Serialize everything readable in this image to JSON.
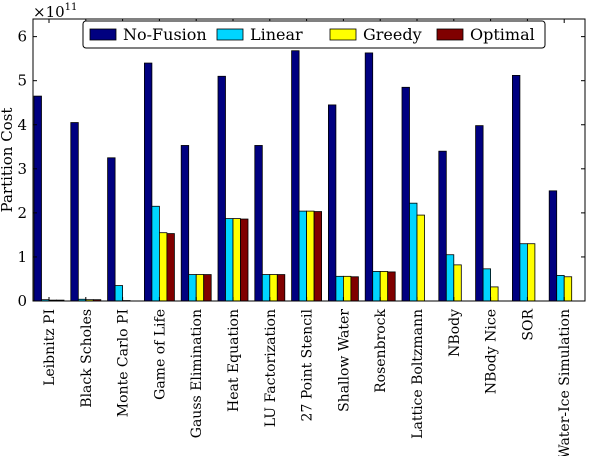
{
  "chart_data": {
    "type": "bar",
    "title": "",
    "xlabel": "",
    "ylabel": "Partition Cost",
    "y_exponent_label": "×10",
    "y_exponent_power": "11",
    "y_scale": 100000000000.0,
    "ylim": [
      0,
      6.4
    ],
    "y_ticks": [
      0,
      1,
      2,
      3,
      4,
      5,
      6
    ],
    "y_tick_labels": [
      "0",
      "1",
      "2",
      "3",
      "4",
      "5",
      "6"
    ],
    "grid": false,
    "legend_placement": "top",
    "categories": [
      "Leibnitz PI",
      "Black Scholes",
      "Monte Carlo PI",
      "Game of Life",
      "Gauss Elimination",
      "Heat Equation",
      "LU Factorization",
      "27 Point Stencil",
      "Shallow Water",
      "Rosenbrock",
      "Lattice Boltzmann",
      "NBody",
      "NBody Nice",
      "SOR",
      "Water-Ice Simulation"
    ],
    "series": [
      {
        "name": "No-Fusion",
        "color": "#000080",
        "values": [
          4.65,
          4.05,
          3.25,
          5.4,
          3.53,
          5.1,
          3.53,
          5.68,
          4.45,
          5.63,
          4.85,
          3.4,
          3.98,
          5.12,
          2.5
        ]
      },
      {
        "name": "Linear",
        "color": "#00d5ff",
        "values": [
          0.03,
          0.04,
          0.35,
          2.15,
          0.6,
          1.87,
          0.6,
          2.04,
          0.56,
          0.67,
          2.22,
          1.05,
          0.73,
          1.3,
          0.58
        ]
      },
      {
        "name": "Greedy",
        "color": "#ffff00",
        "values": [
          0.02,
          0.03,
          0.01,
          1.55,
          0.6,
          1.87,
          0.6,
          2.04,
          0.56,
          0.67,
          1.95,
          0.82,
          0.32,
          1.3,
          0.55
        ]
      },
      {
        "name": "Optimal",
        "color": "#800000",
        "values": [
          0.02,
          0.03,
          0.0,
          1.53,
          0.6,
          1.86,
          0.6,
          2.03,
          0.55,
          0.66,
          0.0,
          0.0,
          0.0,
          0.0,
          0.0
        ]
      }
    ]
  }
}
